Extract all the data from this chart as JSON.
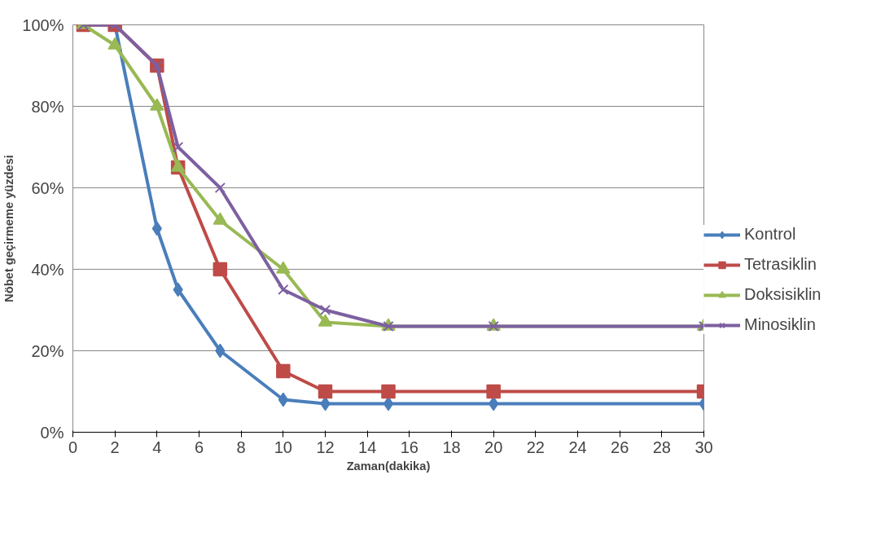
{
  "chart_data": {
    "type": "line",
    "xlabel": "Zaman(dakika)",
    "ylabel": "Nöbet geçirmeme yüzdesi",
    "x": [
      0.5,
      2,
      4,
      5,
      7,
      10,
      12,
      15,
      20,
      30
    ],
    "series": [
      {
        "name": "Kontrol",
        "color": "#4a7ebb",
        "marker": "diamond",
        "values": [
          100,
          100,
          50,
          35,
          20,
          8,
          7,
          7,
          7,
          7
        ]
      },
      {
        "name": "Tetrasiklin",
        "color": "#be4b48",
        "marker": "square",
        "values": [
          100,
          100,
          90,
          65,
          40,
          15,
          10,
          10,
          10,
          10
        ]
      },
      {
        "name": "Doksisiklin",
        "color": "#98b954",
        "marker": "triangle",
        "values": [
          100,
          95,
          80,
          65,
          52,
          40,
          27,
          26,
          26,
          26
        ]
      },
      {
        "name": "Minosiklin",
        "color": "#7d60a0",
        "marker": "cross",
        "values": [
          100,
          100,
          90,
          70,
          60,
          35,
          30,
          26,
          26,
          26
        ]
      }
    ],
    "xlim": [
      0,
      30
    ],
    "xticks": [
      0,
      2,
      4,
      6,
      8,
      10,
      12,
      14,
      16,
      18,
      20,
      22,
      24,
      26,
      28,
      30
    ],
    "ylim": [
      0,
      100
    ],
    "yticks": [
      {
        "value": 0,
        "label": "0%"
      },
      {
        "value": 20,
        "label": "20%"
      },
      {
        "value": 40,
        "label": "40%"
      },
      {
        "value": 60,
        "label": "60%"
      },
      {
        "value": 80,
        "label": "80%"
      },
      {
        "value": 100,
        "label": "100%"
      }
    ],
    "grid": "y",
    "legend": "right",
    "line_style": "solid"
  }
}
